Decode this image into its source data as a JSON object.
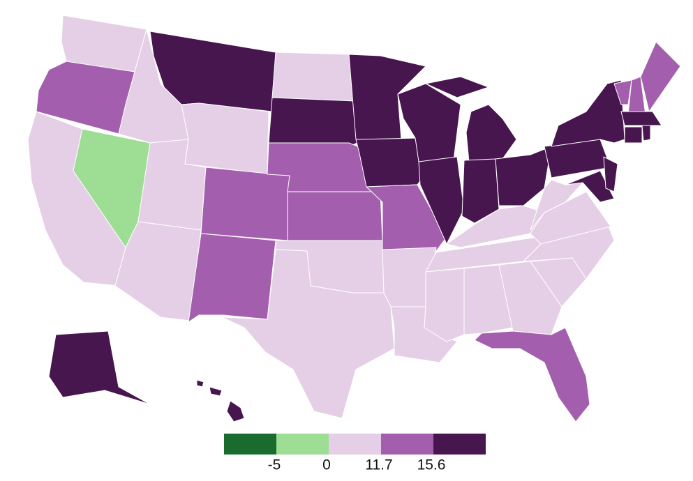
{
  "legend": {
    "colors": [
      "#1a6b2e",
      "#9ddd94",
      "#e5cfe6",
      "#a35fad",
      "#47164e"
    ],
    "ticks": [
      -5,
      0,
      11.7,
      15.6
    ]
  }
}
